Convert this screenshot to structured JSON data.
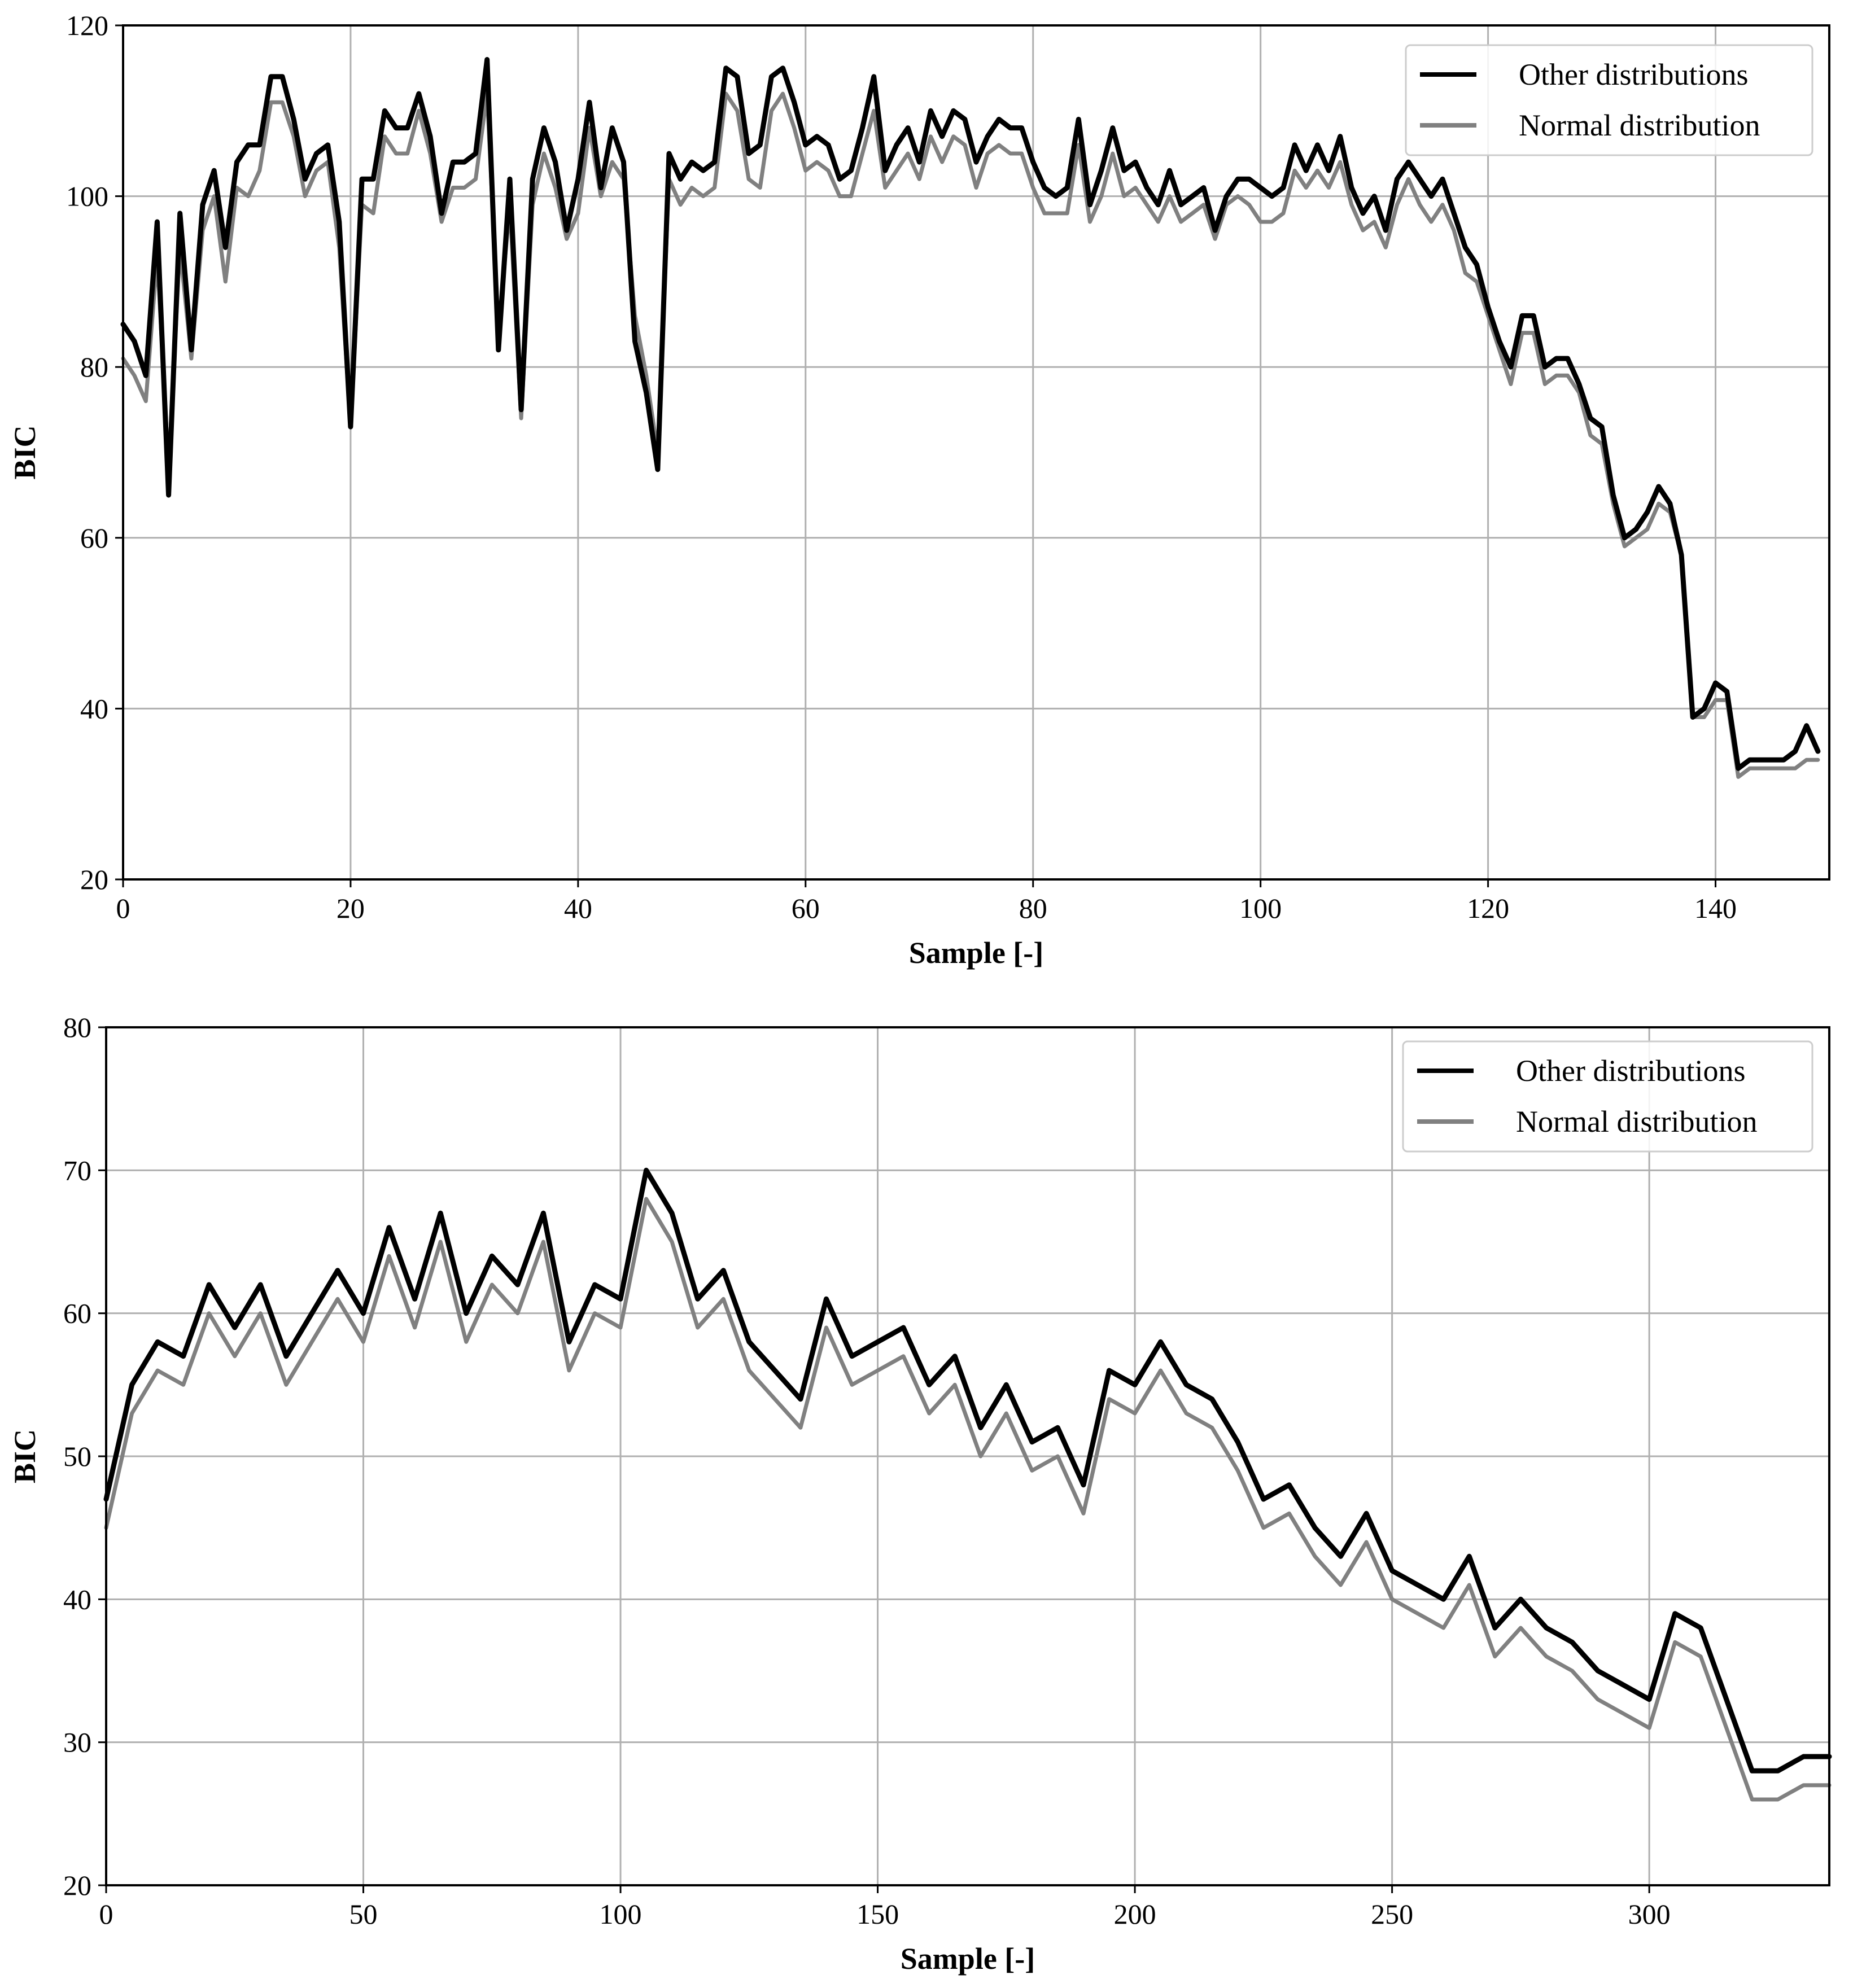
{
  "colors": {
    "other": "#000000",
    "normal": "#808080",
    "grid": "#b0b0b0",
    "axes": "#000000",
    "legend_border": "#cccccc"
  },
  "chart_data": [
    {
      "type": "line",
      "xlabel": "Sample [-]",
      "ylabel": "BIC",
      "xlim": [
        0,
        150
      ],
      "ylim": [
        20,
        120
      ],
      "xticks": [
        0,
        20,
        40,
        60,
        80,
        100,
        120,
        140
      ],
      "yticks": [
        20,
        40,
        60,
        80,
        100,
        120
      ],
      "grid": true,
      "legend_position": "top-right",
      "legend": [
        "Other distributions",
        "Normal distribution"
      ],
      "series": [
        {
          "name": "Other distributions",
          "color": "#000000",
          "x": [
            0,
            1,
            2,
            3,
            4,
            5,
            6,
            7,
            8,
            9,
            10,
            11,
            12,
            13,
            14,
            15,
            16,
            17,
            18,
            19,
            20,
            21,
            22,
            23,
            24,
            25,
            26,
            27,
            28,
            29,
            30,
            31,
            32,
            33,
            34,
            35,
            36,
            37,
            38,
            39,
            40,
            41,
            42,
            43,
            44,
            45,
            46,
            47,
            48,
            49,
            50,
            51,
            52,
            53,
            54,
            55,
            56,
            57,
            58,
            59,
            60,
            61,
            62,
            63,
            64,
            65,
            66,
            67,
            68,
            69,
            70,
            71,
            72,
            73,
            74,
            75,
            76,
            77,
            78,
            79,
            80,
            81,
            82,
            83,
            84,
            85,
            86,
            87,
            88,
            89,
            90,
            91,
            92,
            93,
            94,
            95,
            96,
            97,
            98,
            99,
            100,
            101,
            102,
            103,
            104,
            105,
            106,
            107,
            108,
            109,
            110,
            111,
            112,
            113,
            114,
            115,
            116,
            117,
            118,
            119,
            120,
            121,
            122,
            123,
            124,
            125,
            126,
            127,
            128,
            129,
            130,
            131,
            132,
            133,
            134,
            135,
            136,
            137,
            138,
            139,
            140,
            141,
            142,
            143,
            144,
            145,
            146,
            147,
            148,
            149
          ],
          "values": [
            85,
            83,
            79,
            97,
            65,
            98,
            82,
            99,
            103,
            94,
            104,
            106,
            106,
            114,
            114,
            109,
            102,
            105,
            106,
            97,
            73,
            102,
            102,
            110,
            108,
            108,
            112,
            107,
            98,
            104,
            104,
            105,
            116,
            82,
            102,
            75,
            102,
            108,
            104,
            96,
            102,
            111,
            101,
            108,
            104,
            83,
            77,
            68,
            105,
            102,
            104,
            103,
            104,
            115,
            114,
            105,
            106,
            114,
            115,
            111,
            106,
            107,
            106,
            102,
            103,
            108,
            114,
            103,
            106,
            108,
            104,
            110,
            107,
            110,
            109,
            104,
            107,
            109,
            108,
            108,
            104,
            101,
            100,
            101,
            109,
            99,
            103,
            108,
            103,
            104,
            101,
            99,
            103,
            99,
            100,
            101,
            96,
            100,
            102,
            102,
            101,
            100,
            101,
            106,
            103,
            106,
            103,
            107,
            101,
            98,
            100,
            96,
            102,
            104,
            102,
            100,
            102,
            98,
            94,
            92,
            87,
            83,
            80,
            86,
            86,
            80,
            81,
            81,
            78,
            74,
            73,
            65,
            60,
            61,
            63,
            66,
            64,
            58,
            39,
            40,
            43,
            42,
            33,
            34,
            34,
            34,
            34,
            35,
            38,
            35
          ]
        },
        {
          "name": "Normal distribution",
          "color": "#808080",
          "x": [
            0,
            1,
            2,
            3,
            4,
            5,
            6,
            7,
            8,
            9,
            10,
            11,
            12,
            13,
            14,
            15,
            16,
            17,
            18,
            19,
            20,
            21,
            22,
            23,
            24,
            25,
            26,
            27,
            28,
            29,
            30,
            31,
            32,
            33,
            34,
            35,
            36,
            37,
            38,
            39,
            40,
            41,
            42,
            43,
            44,
            45,
            46,
            47,
            48,
            49,
            50,
            51,
            52,
            53,
            54,
            55,
            56,
            57,
            58,
            59,
            60,
            61,
            62,
            63,
            64,
            65,
            66,
            67,
            68,
            69,
            70,
            71,
            72,
            73,
            74,
            75,
            76,
            77,
            78,
            79,
            80,
            81,
            82,
            83,
            84,
            85,
            86,
            87,
            88,
            89,
            90,
            91,
            92,
            93,
            94,
            95,
            96,
            97,
            98,
            99,
            100,
            101,
            102,
            103,
            104,
            105,
            106,
            107,
            108,
            109,
            110,
            111,
            112,
            113,
            114,
            115,
            116,
            117,
            118,
            119,
            120,
            121,
            122,
            123,
            124,
            125,
            126,
            127,
            128,
            129,
            130,
            131,
            132,
            133,
            134,
            135,
            136,
            137,
            138,
            139,
            140,
            141,
            142,
            143,
            144,
            145,
            146,
            147,
            148,
            149
          ],
          "values": [
            81,
            79,
            76,
            93,
            68,
            94,
            81,
            96,
            100,
            90,
            101,
            100,
            103,
            111,
            111,
            107,
            100,
            103,
            104,
            94,
            73,
            99,
            98,
            107,
            105,
            105,
            110,
            105,
            97,
            101,
            101,
            102,
            112,
            84,
            99,
            74,
            99,
            105,
            101,
            95,
            98,
            108,
            100,
            104,
            102,
            86,
            79,
            70,
            102,
            99,
            101,
            100,
            101,
            112,
            110,
            102,
            101,
            110,
            112,
            108,
            103,
            104,
            103,
            100,
            100,
            105,
            110,
            101,
            103,
            105,
            102,
            107,
            104,
            107,
            106,
            101,
            105,
            106,
            105,
            105,
            101,
            98,
            98,
            98,
            106,
            97,
            100,
            105,
            100,
            101,
            99,
            97,
            100,
            97,
            98,
            99,
            95,
            99,
            100,
            99,
            97,
            97,
            98,
            103,
            101,
            103,
            101,
            104,
            99,
            96,
            97,
            94,
            99,
            102,
            99,
            97,
            99,
            96,
            91,
            90,
            86,
            82,
            78,
            84,
            84,
            78,
            79,
            79,
            77,
            72,
            71,
            64,
            59,
            60,
            61,
            64,
            63,
            58,
            39,
            39,
            41,
            41,
            32,
            33,
            33,
            33,
            33,
            33,
            34,
            34
          ]
        }
      ]
    },
    {
      "type": "line",
      "xlabel": "Sample [-]",
      "ylabel": "BIC",
      "xlim": [
        0,
        335
      ],
      "ylim": [
        20,
        80
      ],
      "xticks": [
        0,
        50,
        100,
        150,
        200,
        250,
        300
      ],
      "yticks": [
        20,
        30,
        40,
        50,
        60,
        70,
        80
      ],
      "grid": true,
      "legend_position": "top-right",
      "legend": [
        "Other distributions",
        "Normal distribution"
      ],
      "series": [
        {
          "name": "Other distributions",
          "color": "#000000",
          "x": [
            0,
            5,
            10,
            15,
            20,
            25,
            30,
            35,
            40,
            45,
            50,
            55,
            60,
            65,
            70,
            75,
            80,
            85,
            90,
            95,
            100,
            105,
            110,
            115,
            120,
            125,
            130,
            135,
            140,
            145,
            150,
            155,
            160,
            165,
            170,
            175,
            180,
            185,
            190,
            195,
            200,
            205,
            210,
            215,
            220,
            225,
            230,
            235,
            240,
            245,
            250,
            255,
            260,
            265,
            270,
            275,
            280,
            285,
            290,
            295,
            300,
            305,
            310,
            315,
            320,
            325,
            330,
            335
          ],
          "values": [
            47,
            55,
            58,
            57,
            62,
            59,
            62,
            57,
            60,
            63,
            60,
            66,
            61,
            67,
            60,
            64,
            62,
            67,
            58,
            62,
            61,
            70,
            67,
            61,
            63,
            58,
            56,
            54,
            61,
            57,
            58,
            59,
            55,
            57,
            52,
            55,
            51,
            52,
            48,
            56,
            55,
            58,
            55,
            54,
            51,
            47,
            48,
            45,
            43,
            46,
            42,
            41,
            40,
            43,
            38,
            40,
            38,
            37,
            35,
            34,
            33,
            39,
            38,
            33,
            28,
            28,
            29,
            29
          ]
        },
        {
          "name": "Normal distribution",
          "color": "#808080",
          "x": [
            0,
            5,
            10,
            15,
            20,
            25,
            30,
            35,
            40,
            45,
            50,
            55,
            60,
            65,
            70,
            75,
            80,
            85,
            90,
            95,
            100,
            105,
            110,
            115,
            120,
            125,
            130,
            135,
            140,
            145,
            150,
            155,
            160,
            165,
            170,
            175,
            180,
            185,
            190,
            195,
            200,
            205,
            210,
            215,
            220,
            225,
            230,
            235,
            240,
            245,
            250,
            255,
            260,
            265,
            270,
            275,
            280,
            285,
            290,
            295,
            300,
            305,
            310,
            315,
            320,
            325,
            330,
            335
          ],
          "values": [
            45,
            53,
            56,
            55,
            60,
            57,
            60,
            55,
            58,
            61,
            58,
            64,
            59,
            65,
            58,
            62,
            60,
            65,
            56,
            60,
            59,
            68,
            65,
            59,
            61,
            56,
            54,
            52,
            59,
            55,
            56,
            57,
            53,
            55,
            50,
            53,
            49,
            50,
            46,
            54,
            53,
            56,
            53,
            52,
            49,
            45,
            46,
            43,
            41,
            44,
            40,
            39,
            38,
            41,
            36,
            38,
            36,
            35,
            33,
            32,
            31,
            37,
            36,
            31,
            26,
            26,
            27,
            27
          ]
        }
      ]
    }
  ]
}
